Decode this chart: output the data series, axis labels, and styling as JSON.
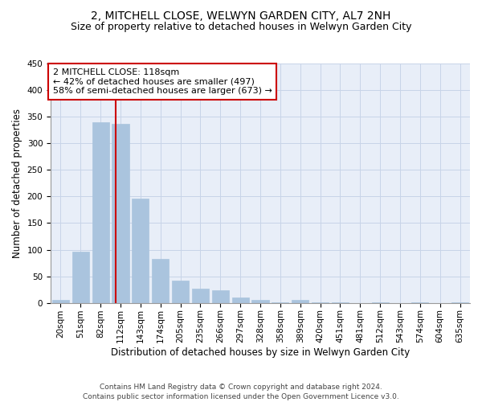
{
  "title": "2, MITCHELL CLOSE, WELWYN GARDEN CITY, AL7 2NH",
  "subtitle": "Size of property relative to detached houses in Welwyn Garden City",
  "xlabel": "Distribution of detached houses by size in Welwyn Garden City",
  "ylabel": "Number of detached properties",
  "categories": [
    "20sqm",
    "51sqm",
    "82sqm",
    "112sqm",
    "143sqm",
    "174sqm",
    "205sqm",
    "235sqm",
    "266sqm",
    "297sqm",
    "328sqm",
    "358sqm",
    "389sqm",
    "420sqm",
    "451sqm",
    "481sqm",
    "512sqm",
    "543sqm",
    "574sqm",
    "604sqm",
    "635sqm"
  ],
  "values": [
    5,
    97,
    340,
    337,
    196,
    83,
    42,
    26,
    24,
    10,
    6,
    1,
    5,
    1,
    1,
    0,
    1,
    0,
    1,
    0,
    1
  ],
  "bar_color": "#aac4de",
  "bar_edge_color": "#aac4de",
  "grid_color": "#c8d4e8",
  "background_color": "#e8eef8",
  "annotation_line1": "2 MITCHELL CLOSE: 118sqm",
  "annotation_line2": "← 42% of detached houses are smaller (497)",
  "annotation_line3": "58% of semi-detached houses are larger (673) →",
  "annotation_box_color": "#ffffff",
  "annotation_box_edge": "#cc0000",
  "property_line_color": "#cc0000",
  "ylim": [
    0,
    450
  ],
  "yticks": [
    0,
    50,
    100,
    150,
    200,
    250,
    300,
    350,
    400,
    450
  ],
  "footer_line1": "Contains HM Land Registry data © Crown copyright and database right 2024.",
  "footer_line2": "Contains public sector information licensed under the Open Government Licence v3.0.",
  "title_fontsize": 10,
  "subtitle_fontsize": 9,
  "axis_label_fontsize": 8.5,
  "tick_fontsize": 7.5,
  "annotation_fontsize": 8,
  "footer_fontsize": 6.5
}
